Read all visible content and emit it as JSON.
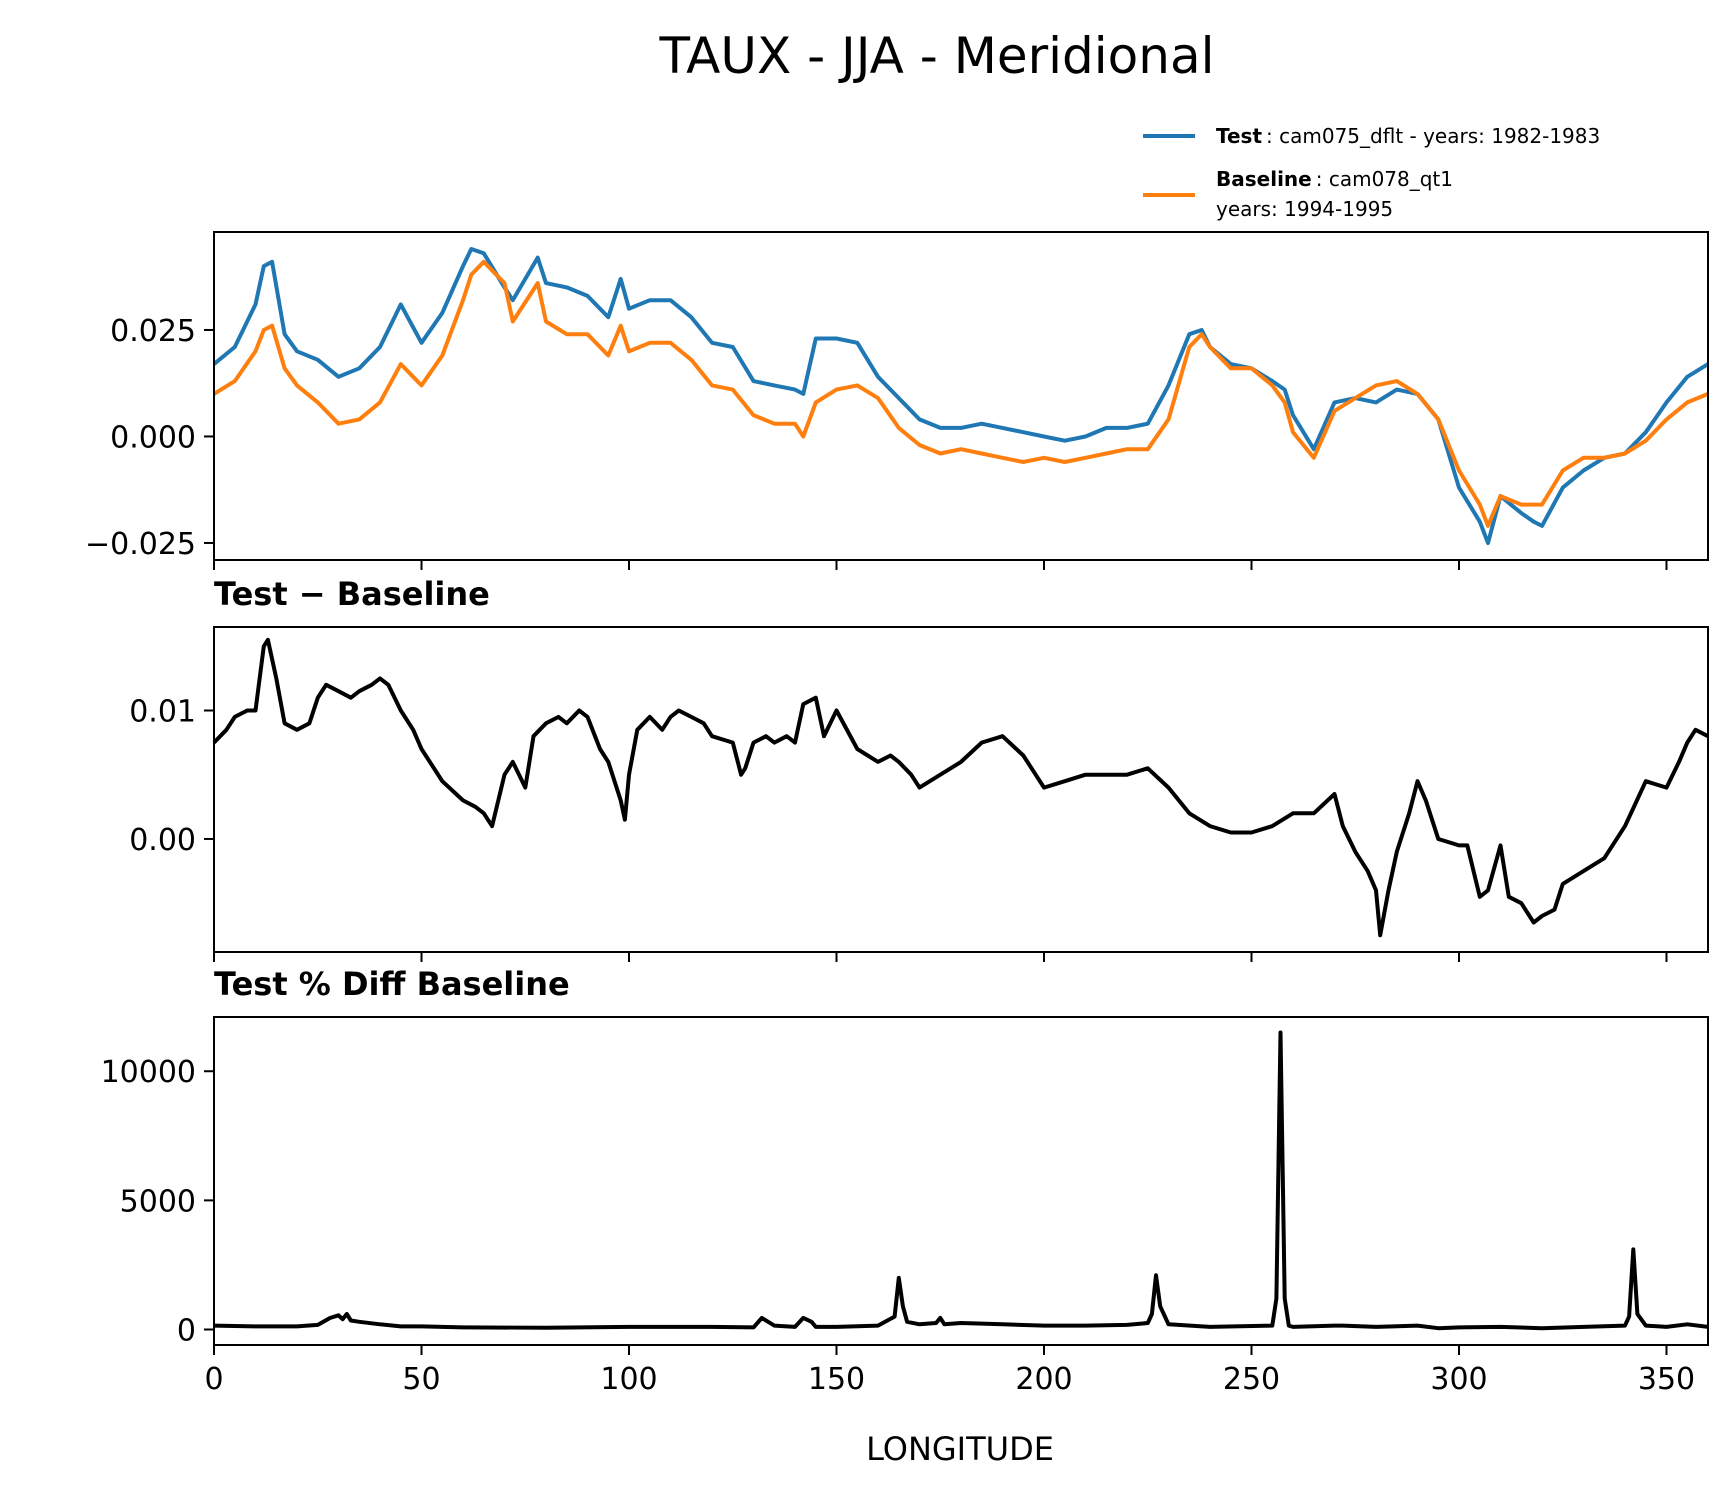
{
  "title": "TAUX - JJA - Meridional",
  "legend": {
    "test": {
      "bold": "Test",
      "text": ": cam075_dflt - years: 1982-1983",
      "color": "#1f77b4"
    },
    "baseline": {
      "bold": "Baseline",
      "text": ": cam078_qt1",
      "text2": "years: 1994-1995",
      "color": "#ff7f0e"
    }
  },
  "xlabel": "LONGITUDE",
  "chart_data": [
    {
      "type": "line",
      "title": "",
      "xlim": [
        0,
        360
      ],
      "ylim": [
        -0.029,
        0.048
      ],
      "yticks": [
        -0.025,
        0.0,
        0.025
      ],
      "ytick_labels": [
        "−0.025",
        "0.000",
        "0.025"
      ],
      "series": [
        {
          "name": "Test",
          "color": "#1f77b4",
          "x": [
            0,
            5,
            10,
            12,
            14,
            17,
            20,
            25,
            30,
            35,
            40,
            45,
            50,
            55,
            60,
            62,
            65,
            70,
            72,
            78,
            80,
            85,
            90,
            95,
            98,
            100,
            105,
            110,
            115,
            120,
            125,
            130,
            135,
            140,
            142,
            145,
            150,
            155,
            160,
            165,
            170,
            175,
            180,
            185,
            190,
            195,
            200,
            205,
            210,
            215,
            220,
            225,
            230,
            235,
            238,
            240,
            245,
            250,
            255,
            258,
            260,
            265,
            270,
            275,
            280,
            285,
            290,
            295,
            300,
            305,
            307,
            310,
            315,
            318,
            320,
            325,
            330,
            335,
            340,
            345,
            350,
            355,
            360
          ],
          "y": [
            0.017,
            0.021,
            0.031,
            0.04,
            0.041,
            0.024,
            0.02,
            0.018,
            0.014,
            0.016,
            0.021,
            0.031,
            0.022,
            0.029,
            0.04,
            0.044,
            0.043,
            0.035,
            0.032,
            0.042,
            0.036,
            0.035,
            0.033,
            0.028,
            0.037,
            0.03,
            0.032,
            0.032,
            0.028,
            0.022,
            0.021,
            0.013,
            0.012,
            0.011,
            0.01,
            0.023,
            0.023,
            0.022,
            0.014,
            0.009,
            0.004,
            0.002,
            0.002,
            0.003,
            0.002,
            0.001,
            0.0,
            -0.001,
            0.0,
            0.002,
            0.002,
            0.003,
            0.012,
            0.024,
            0.025,
            0.021,
            0.017,
            0.016,
            0.013,
            0.011,
            0.005,
            -0.003,
            0.008,
            0.009,
            0.008,
            0.011,
            0.01,
            0.004,
            -0.012,
            -0.02,
            -0.025,
            -0.014,
            -0.018,
            -0.02,
            -0.021,
            -0.012,
            -0.008,
            -0.005,
            -0.004,
            0.001,
            0.008,
            0.014,
            0.017
          ]
        },
        {
          "name": "Baseline",
          "color": "#ff7f0e",
          "x": [
            0,
            5,
            10,
            12,
            14,
            17,
            20,
            25,
            30,
            35,
            40,
            45,
            50,
            55,
            60,
            62,
            65,
            70,
            72,
            78,
            80,
            85,
            90,
            95,
            98,
            100,
            105,
            110,
            115,
            120,
            125,
            130,
            135,
            140,
            142,
            145,
            150,
            155,
            160,
            165,
            170,
            175,
            180,
            185,
            190,
            195,
            200,
            205,
            210,
            215,
            220,
            225,
            230,
            235,
            238,
            240,
            245,
            250,
            255,
            258,
            260,
            265,
            270,
            275,
            280,
            285,
            290,
            295,
            300,
            305,
            307,
            310,
            315,
            318,
            320,
            325,
            330,
            335,
            340,
            345,
            350,
            355,
            360
          ],
          "y": [
            0.01,
            0.013,
            0.02,
            0.025,
            0.026,
            0.016,
            0.012,
            0.008,
            0.003,
            0.004,
            0.008,
            0.017,
            0.012,
            0.019,
            0.032,
            0.038,
            0.041,
            0.036,
            0.027,
            0.036,
            0.027,
            0.024,
            0.024,
            0.019,
            0.026,
            0.02,
            0.022,
            0.022,
            0.018,
            0.012,
            0.011,
            0.005,
            0.003,
            0.003,
            0.0,
            0.008,
            0.011,
            0.012,
            0.009,
            0.002,
            -0.002,
            -0.004,
            -0.003,
            -0.004,
            -0.005,
            -0.006,
            -0.005,
            -0.006,
            -0.005,
            -0.004,
            -0.003,
            -0.003,
            0.004,
            0.021,
            0.024,
            0.021,
            0.016,
            0.016,
            0.012,
            0.008,
            0.001,
            -0.005,
            0.006,
            0.009,
            0.012,
            0.013,
            0.01,
            0.004,
            -0.008,
            -0.016,
            -0.021,
            -0.014,
            -0.016,
            -0.016,
            -0.016,
            -0.008,
            -0.005,
            -0.005,
            -0.004,
            -0.001,
            0.004,
            0.008,
            0.01
          ]
        }
      ]
    },
    {
      "type": "line",
      "title": "Test − Baseline",
      "xlim": [
        0,
        360
      ],
      "ylim": [
        -0.0088,
        0.0165
      ],
      "yticks": [
        0.0,
        0.01
      ],
      "ytick_labels": [
        "0.00",
        "0.01"
      ],
      "series": [
        {
          "name": "",
          "color": "#000000",
          "x": [
            0,
            3,
            5,
            8,
            10,
            12,
            13,
            15,
            17,
            20,
            23,
            25,
            27,
            30,
            33,
            35,
            38,
            40,
            42,
            45,
            48,
            50,
            55,
            60,
            63,
            65,
            67,
            70,
            72,
            75,
            77,
            80,
            83,
            85,
            88,
            90,
            93,
            95,
            98,
            99,
            100,
            102,
            105,
            108,
            110,
            112,
            115,
            118,
            120,
            125,
            127,
            128,
            130,
            133,
            135,
            138,
            140,
            142,
            145,
            147,
            150,
            155,
            160,
            163,
            165,
            168,
            170,
            175,
            180,
            185,
            190,
            195,
            200,
            205,
            210,
            215,
            220,
            225,
            230,
            235,
            240,
            245,
            250,
            255,
            260,
            265,
            270,
            272,
            275,
            278,
            280,
            281,
            283,
            285,
            288,
            290,
            292,
            295,
            300,
            302,
            305,
            307,
            310,
            312,
            315,
            318,
            320,
            323,
            325,
            330,
            335,
            340,
            345,
            350,
            353,
            355,
            357,
            360
          ],
          "y": [
            0.0075,
            0.0085,
            0.0095,
            0.01,
            0.01,
            0.015,
            0.0155,
            0.0125,
            0.009,
            0.0085,
            0.009,
            0.011,
            0.012,
            0.0115,
            0.011,
            0.0115,
            0.012,
            0.0125,
            0.012,
            0.01,
            0.0085,
            0.007,
            0.0045,
            0.003,
            0.0025,
            0.002,
            0.001,
            0.005,
            0.006,
            0.004,
            0.008,
            0.009,
            0.0095,
            0.009,
            0.01,
            0.0095,
            0.007,
            0.006,
            0.003,
            0.0015,
            0.005,
            0.0085,
            0.0095,
            0.0085,
            0.0095,
            0.01,
            0.0095,
            0.009,
            0.008,
            0.0075,
            0.005,
            0.0055,
            0.0075,
            0.008,
            0.0075,
            0.008,
            0.0075,
            0.0105,
            0.011,
            0.008,
            0.01,
            0.007,
            0.006,
            0.0065,
            0.006,
            0.005,
            0.004,
            0.005,
            0.006,
            0.0075,
            0.008,
            0.0065,
            0.004,
            0.0045,
            0.005,
            0.005,
            0.005,
            0.0055,
            0.004,
            0.002,
            0.001,
            0.0005,
            0.0005,
            0.001,
            0.002,
            0.002,
            0.0035,
            0.001,
            -0.001,
            -0.0025,
            -0.004,
            -0.0075,
            -0.004,
            -0.001,
            0.002,
            0.0045,
            0.003,
            0.0,
            -0.0005,
            -0.0005,
            -0.0045,
            -0.004,
            -0.0005,
            -0.0045,
            -0.005,
            -0.0065,
            -0.006,
            -0.0055,
            -0.0035,
            -0.0025,
            -0.0015,
            0.001,
            0.0045,
            0.004,
            0.006,
            0.0075,
            0.0085,
            0.008
          ]
        }
      ]
    },
    {
      "type": "line",
      "title": "Test % Diff Baseline",
      "xlim": [
        0,
        360
      ],
      "ylim": [
        -600,
        12100
      ],
      "yticks": [
        0,
        5000,
        10000
      ],
      "ytick_labels": [
        "0",
        "5000",
        "10000"
      ],
      "xticks": [
        0,
        50,
        100,
        150,
        200,
        250,
        300,
        350
      ],
      "xtick_labels": [
        "0",
        "50",
        "100",
        "150",
        "200",
        "250",
        "300",
        "350"
      ],
      "series": [
        {
          "name": "",
          "color": "#000000",
          "x": [
            0,
            10,
            20,
            25,
            28,
            30,
            31,
            32,
            33,
            35,
            40,
            45,
            50,
            60,
            80,
            100,
            120,
            130,
            132,
            135,
            140,
            142,
            144,
            145,
            150,
            160,
            164,
            165,
            166,
            167,
            170,
            174,
            175,
            176,
            180,
            190,
            200,
            210,
            220,
            225,
            226,
            227,
            228,
            230,
            240,
            255,
            256,
            257,
            258,
            259,
            260,
            270,
            272,
            280,
            290,
            295,
            300,
            310,
            320,
            330,
            340,
            341,
            342,
            343,
            345,
            350,
            355,
            360
          ],
          "y": [
            150,
            120,
            120,
            180,
            450,
            550,
            400,
            600,
            350,
            300,
            200,
            120,
            120,
            80,
            70,
            100,
            100,
            80,
            450,
            150,
            100,
            450,
            300,
            100,
            100,
            150,
            500,
            2000,
            900,
            300,
            200,
            250,
            450,
            200,
            250,
            200,
            150,
            150,
            180,
            250,
            600,
            2100,
            900,
            200,
            100,
            150,
            1200,
            11500,
            1200,
            150,
            100,
            150,
            150,
            100,
            150,
            50,
            80,
            100,
            50,
            100,
            150,
            500,
            3100,
            600,
            150,
            100,
            200,
            100
          ]
        }
      ]
    }
  ]
}
